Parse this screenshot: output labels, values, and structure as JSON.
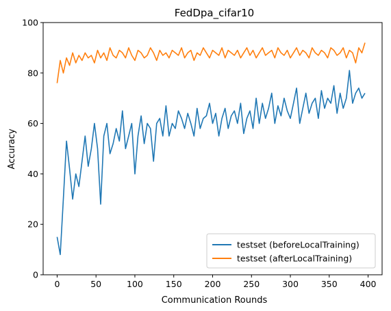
{
  "chart_data": {
    "type": "line",
    "title": "FedDpa_cifar10",
    "xlabel": "Communication Rounds",
    "ylabel": "Accuracy",
    "xlim": [
      -18,
      418
    ],
    "ylim": [
      0,
      100
    ],
    "xticks": [
      0,
      50,
      100,
      150,
      200,
      250,
      300,
      350,
      400
    ],
    "yticks": [
      0,
      20,
      40,
      60,
      80,
      100
    ],
    "grid": false,
    "legend_position": "lower-right",
    "x_step": 4,
    "series": [
      {
        "name": "testset (beforeLocalTraining)",
        "color": "#1f77b4",
        "values": [
          15,
          8,
          30,
          53,
          42,
          30,
          40,
          35,
          45,
          55,
          43,
          50,
          60,
          50,
          28,
          55,
          60,
          48,
          52,
          58,
          53,
          65,
          50,
          55,
          60,
          40,
          55,
          63,
          52,
          60,
          58,
          45,
          60,
          62,
          55,
          67,
          55,
          60,
          58,
          65,
          62,
          58,
          64,
          60,
          55,
          66,
          58,
          62,
          63,
          68,
          60,
          64,
          55,
          62,
          66,
          58,
          63,
          65,
          60,
          68,
          56,
          62,
          65,
          58,
          70,
          60,
          68,
          62,
          66,
          72,
          60,
          67,
          63,
          70,
          65,
          62,
          68,
          74,
          60,
          66,
          72,
          64,
          68,
          70,
          62,
          73,
          66,
          70,
          68,
          75,
          64,
          72,
          66,
          70,
          81,
          68,
          72,
          74,
          70,
          72
        ]
      },
      {
        "name": "testset (afterLocalTraining)",
        "color": "#ff7f0e",
        "values": [
          76,
          85,
          80,
          86,
          83,
          88,
          84,
          87,
          85,
          88,
          86,
          87,
          84,
          89,
          86,
          88,
          85,
          90,
          87,
          86,
          89,
          88,
          86,
          90,
          87,
          85,
          89,
          88,
          86,
          87,
          90,
          88,
          85,
          89,
          87,
          88,
          86,
          89,
          88,
          87,
          90,
          86,
          88,
          89,
          85,
          88,
          87,
          90,
          88,
          86,
          89,
          88,
          87,
          90,
          86,
          89,
          88,
          87,
          89,
          86,
          88,
          90,
          87,
          89,
          86,
          88,
          90,
          87,
          88,
          89,
          86,
          90,
          88,
          87,
          89,
          86,
          88,
          90,
          87,
          89,
          88,
          86,
          90,
          88,
          87,
          89,
          88,
          86,
          90,
          89,
          87,
          88,
          90,
          86,
          89,
          88,
          84,
          90,
          88,
          92
        ]
      }
    ]
  }
}
